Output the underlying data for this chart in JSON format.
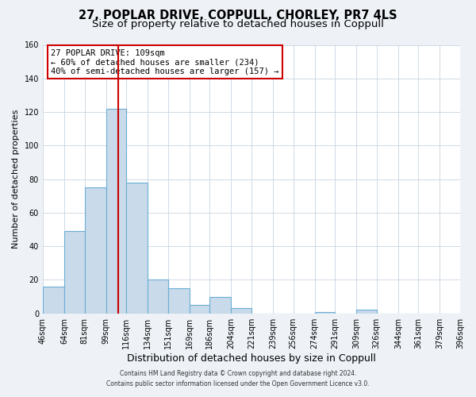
{
  "title": "27, POPLAR DRIVE, COPPULL, CHORLEY, PR7 4LS",
  "subtitle": "Size of property relative to detached houses in Coppull",
  "xlabel": "Distribution of detached houses by size in Coppull",
  "ylabel": "Number of detached properties",
  "footer_line1": "Contains HM Land Registry data © Crown copyright and database right 2024.",
  "footer_line2": "Contains public sector information licensed under the Open Government Licence v3.0.",
  "annotation_line1": "27 POPLAR DRIVE: 109sqm",
  "annotation_line2": "← 60% of detached houses are smaller (234)",
  "annotation_line3": "40% of semi-detached houses are larger (157) →",
  "bar_values": [
    16,
    49,
    75,
    122,
    78,
    20,
    15,
    5,
    10,
    3,
    0,
    0,
    0,
    1,
    0,
    2,
    0,
    0,
    0,
    0
  ],
  "bin_labels": [
    "46sqm",
    "64sqm",
    "81sqm",
    "99sqm",
    "116sqm",
    "134sqm",
    "151sqm",
    "169sqm",
    "186sqm",
    "204sqm",
    "221sqm",
    "239sqm",
    "256sqm",
    "274sqm",
    "291sqm",
    "309sqm",
    "326sqm",
    "344sqm",
    "361sqm",
    "379sqm",
    "396sqm"
  ],
  "bar_color": "#c9daea",
  "bar_edge_color": "#6aaed6",
  "vline_x": 109,
  "vline_color": "#cc0000",
  "bin_edges": [
    46,
    64,
    81,
    99,
    116,
    134,
    151,
    169,
    186,
    204,
    221,
    239,
    256,
    274,
    291,
    309,
    326,
    344,
    361,
    379,
    396
  ],
  "background_color": "#eef2f7",
  "plot_bg_color": "#ffffff",
  "ylim": [
    0,
    160
  ],
  "yticks": [
    0,
    20,
    40,
    60,
    80,
    100,
    120,
    140,
    160
  ],
  "grid_color": "#c8d4e0",
  "title_fontsize": 10.5,
  "subtitle_fontsize": 9.5,
  "annotation_box_color": "#ffffff",
  "annotation_box_edge": "#cc0000",
  "tick_fontsize": 7,
  "ylabel_fontsize": 8,
  "xlabel_fontsize": 9
}
